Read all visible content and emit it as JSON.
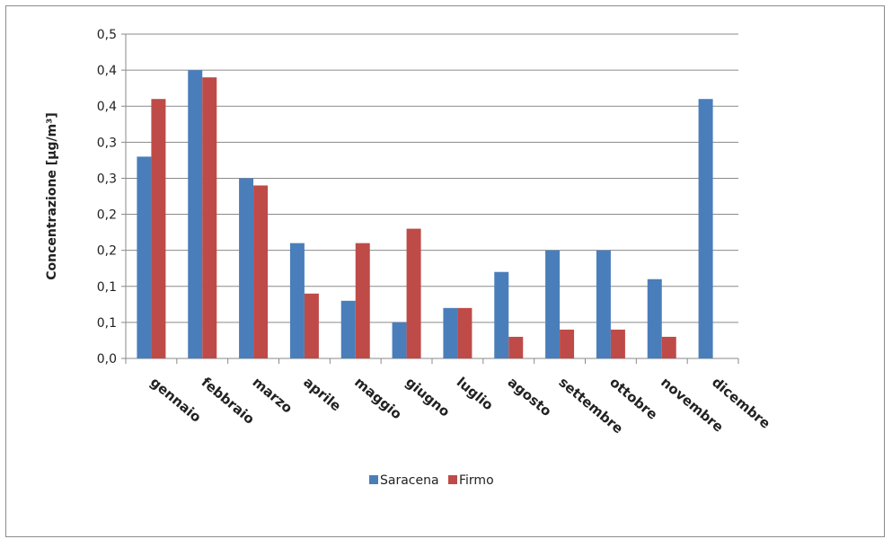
{
  "chart_data": {
    "type": "bar",
    "ylabel": "Concentrazione [µg/m³]",
    "categories": [
      "gennaio",
      "febbraio",
      "marzo",
      "aprile",
      "maggio",
      "giugno",
      "luglio",
      "agosto",
      "settembre",
      "ottobre",
      "novembre",
      "dicembre"
    ],
    "series": [
      {
        "name": "Saracena",
        "color": "#4a7ebb",
        "values": [
          0.28,
          0.4,
          0.25,
          0.16,
          0.08,
          0.05,
          0.07,
          0.12,
          0.15,
          0.15,
          0.11,
          0.36
        ]
      },
      {
        "name": "Firmo",
        "color": "#be4b48",
        "values": [
          0.36,
          0.39,
          0.24,
          0.09,
          0.16,
          0.18,
          0.07,
          0.03,
          0.04,
          0.04,
          0.03,
          null
        ]
      }
    ],
    "ylim": [
      0,
      0.45
    ],
    "yticks": [
      0,
      0.05,
      0.1,
      0.15,
      0.2,
      0.25,
      0.3,
      0.35,
      0.4,
      0.45
    ],
    "ytick_labels": [
      "0,0",
      "0,1",
      "0,1",
      "0,2",
      "0,2",
      "0,3",
      "0,3",
      "0,4",
      "0,4",
      "0,5"
    ],
    "grid": true,
    "legend_position": "bottom"
  }
}
